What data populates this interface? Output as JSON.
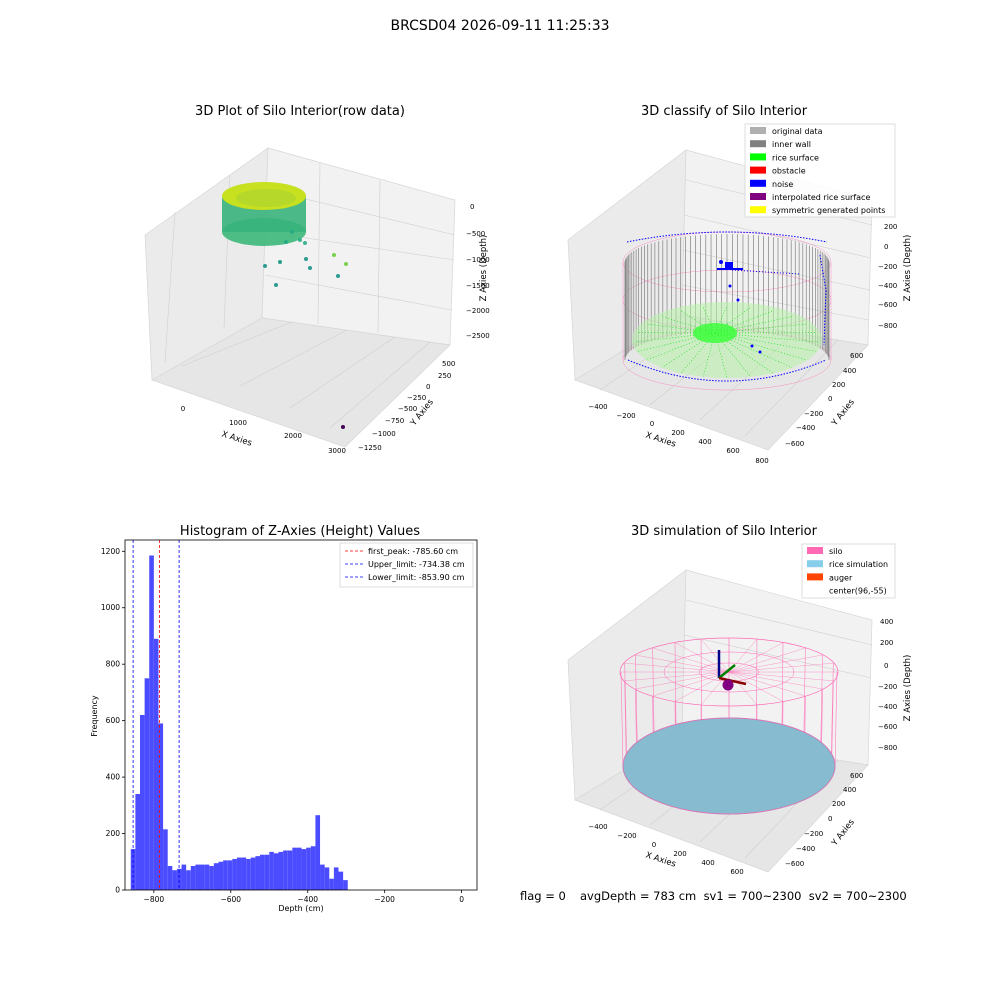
{
  "figure": {
    "suptitle": "BRCSD04 2026-09-11 11:25:33"
  },
  "panel_raw": {
    "title": "3D Plot of Silo Interior(row data)",
    "xlabel": "X Axies",
    "ylabel": "Y Axies",
    "zlabel": "Z Axies (Depth)",
    "xticks": [
      "0",
      "1000",
      "2000",
      "3000"
    ],
    "yticks": [
      "500",
      "250",
      "0",
      "−250",
      "−500",
      "−750",
      "−1000",
      "−1250"
    ],
    "zticks": [
      "0",
      "−500",
      "−1000",
      "−1500",
      "−2000",
      "−2500"
    ]
  },
  "panel_classify": {
    "title": "3D classify of Silo Interior",
    "xlabel": "X Axies",
    "ylabel": "Y Axies",
    "zlabel": "Z Axies (Depth)",
    "xticks": [
      "−400",
      "−200",
      "0",
      "200",
      "400",
      "600",
      "800"
    ],
    "yticks": [
      "600",
      "400",
      "200",
      "0",
      "−200",
      "−400",
      "−600"
    ],
    "zticks": [
      "200",
      "0",
      "−200",
      "−400",
      "−600",
      "−800"
    ],
    "legend": [
      {
        "label": "original data",
        "color": "#b0b0b0"
      },
      {
        "label": "inner wall",
        "color": "#808080"
      },
      {
        "label": "rice surface",
        "color": "#00ff00"
      },
      {
        "label": "obstacle",
        "color": "#ff0000"
      },
      {
        "label": "noise",
        "color": "#0000ff"
      },
      {
        "label": "interpolated rice surface",
        "color": "#800080"
      },
      {
        "label": "symmetric generated points",
        "color": "#ffff00"
      }
    ]
  },
  "panel_sim": {
    "title": "3D simulation of Silo Interior",
    "xlabel": "X Axies",
    "ylabel": "Y Axies",
    "zlabel": "Z Axies (Depth)",
    "xticks": [
      "−400",
      "−200",
      "0",
      "200",
      "400",
      "600"
    ],
    "yticks": [
      "600",
      "400",
      "200",
      "0",
      "−200",
      "−400",
      "−600"
    ],
    "zticks": [
      "400",
      "200",
      "0",
      "−200",
      "−400",
      "−600",
      "−800"
    ],
    "legend": [
      {
        "label": "silo",
        "color": "#ff69b4"
      },
      {
        "label": "rice simulation",
        "color": "#87ceeb"
      },
      {
        "label": "auger",
        "color": "#ff4500"
      },
      {
        "label": "center(96,-55)",
        "color": ""
      }
    ]
  },
  "bottom_text": {
    "flag": "flag = 0",
    "avg": "avgDepth = 783 cm  sv1 = 700~2300  sv2 = 700~2300"
  },
  "chart_data": {
    "type": "bar",
    "title": "Histogram of Z-Axies (Height) Values",
    "xlabel": "Depth (cm)",
    "ylabel": "Frequency",
    "xlim": [
      -875,
      40
    ],
    "ylim": [
      0,
      1240
    ],
    "xticks": [
      -800,
      -600,
      -400,
      -200,
      0
    ],
    "xtick_labels": [
      "−800",
      "−600",
      "−400",
      "−200",
      "0"
    ],
    "yticks": [
      0,
      200,
      400,
      600,
      800,
      1000,
      1200
    ],
    "bar_color": "#4b4bff",
    "bin_start": -860,
    "bin_width": 12,
    "values": [
      145,
      340,
      620,
      750,
      1185,
      890,
      590,
      215,
      85,
      70,
      75,
      90,
      70,
      85,
      90,
      90,
      90,
      85,
      95,
      100,
      105,
      105,
      110,
      115,
      115,
      110,
      115,
      120,
      125,
      125,
      135,
      130,
      135,
      140,
      140,
      150,
      150,
      145,
      150,
      155,
      265,
      90,
      80,
      40,
      80,
      65,
      35
    ],
    "lines": [
      {
        "label": "first_peak: -785.60 cm",
        "x": -785.6,
        "color": "#ff0000"
      },
      {
        "label": "Upper_limit: -734.38 cm",
        "x": -734.38,
        "color": "#0000ff"
      },
      {
        "label": "Lower_limit: -853.90 cm",
        "x": -853.9,
        "color": "#0000ff"
      }
    ]
  }
}
